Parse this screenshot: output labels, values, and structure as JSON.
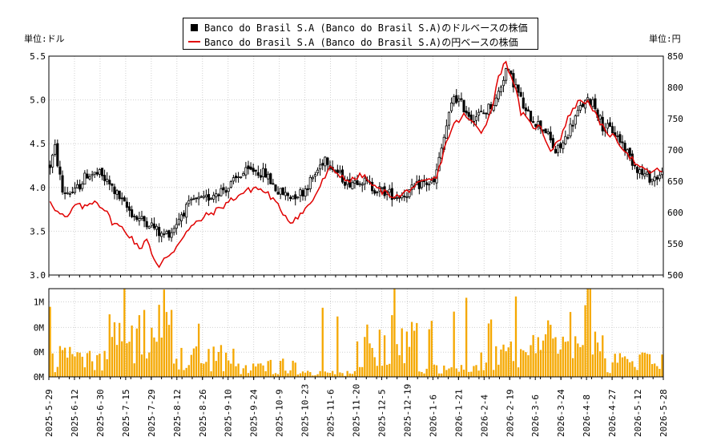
{
  "chart_data": {
    "type": "candlestick",
    "legend": {
      "usd_label": "Banco do Brasil S.A (Banco do Brasil S.A)のドルベースの株価",
      "jpy_label": "Banco do Brasil S.A (Banco do Brasil S.A)の円ベースの株価"
    },
    "left_unit": "単位:ドル",
    "right_unit": "単位:円",
    "y_left": {
      "min": 3.0,
      "max": 5.5,
      "ticks": [
        "3.0",
        "3.5",
        "4.0",
        "4.5",
        "5.0",
        "5.5"
      ]
    },
    "y_right": {
      "min": 500,
      "max": 850,
      "ticks": [
        "500",
        "550",
        "600",
        "650",
        "700",
        "750",
        "800",
        "850"
      ]
    },
    "volume_axis": {
      "ticks": [
        "0M",
        "0M",
        "0M",
        "1M"
      ]
    },
    "x_labels": [
      "2025-5-29",
      "2025-6-12",
      "2025-6-30",
      "2025-7-15",
      "2025-7-29",
      "2025-8-12",
      "2025-8-26",
      "2025-9-10",
      "2025-9-24",
      "2025-10-9",
      "2025-10-23",
      "2025-11-6",
      "2025-11-20",
      "2025-12-5",
      "2025-12-19",
      "2026-1-6",
      "2026-1-21",
      "2026-2-4",
      "2026-2-19",
      "2026-3-6",
      "2026-3-24",
      "2026-4-8",
      "2026-4-27",
      "2026-5-12",
      "2026-5-28"
    ],
    "usd_keypoints": [
      [
        0,
        4.25
      ],
      [
        2,
        4.45
      ],
      [
        5,
        3.95
      ],
      [
        10,
        3.95
      ],
      [
        15,
        4.15
      ],
      [
        20,
        4.15
      ],
      [
        25,
        4.0
      ],
      [
        30,
        3.8
      ],
      [
        35,
        3.65
      ],
      [
        40,
        3.6
      ],
      [
        45,
        3.45
      ],
      [
        49,
        3.5
      ],
      [
        53,
        3.7
      ],
      [
        58,
        3.85
      ],
      [
        62,
        3.85
      ],
      [
        67,
        3.95
      ],
      [
        72,
        4.0
      ],
      [
        77,
        4.15
      ],
      [
        82,
        4.2
      ],
      [
        87,
        4.15
      ],
      [
        92,
        3.95
      ],
      [
        97,
        3.9
      ],
      [
        102,
        3.95
      ],
      [
        107,
        4.15
      ],
      [
        111,
        4.35
      ],
      [
        115,
        4.2
      ],
      [
        120,
        4.05
      ],
      [
        125,
        4.1
      ],
      [
        130,
        4.0
      ],
      [
        135,
        3.95
      ],
      [
        140,
        3.9
      ],
      [
        145,
        3.95
      ],
      [
        150,
        4.05
      ],
      [
        155,
        4.05
      ],
      [
        160,
        4.7
      ],
      [
        163,
        5.05
      ],
      [
        166,
        4.95
      ],
      [
        170,
        4.8
      ],
      [
        175,
        4.85
      ],
      [
        180,
        5.0
      ],
      [
        184,
        5.35
      ],
      [
        188,
        5.15
      ],
      [
        192,
        4.85
      ],
      [
        196,
        4.75
      ],
      [
        200,
        4.65
      ],
      [
        204,
        4.4
      ],
      [
        207,
        4.5
      ],
      [
        211,
        4.75
      ],
      [
        215,
        4.95
      ],
      [
        219,
        5.0
      ],
      [
        223,
        4.7
      ],
      [
        227,
        4.65
      ],
      [
        231,
        4.5
      ],
      [
        235,
        4.3
      ],
      [
        239,
        4.15
      ],
      [
        243,
        4.1
      ],
      [
        247,
        4.15
      ]
    ],
    "jpy_keypoints": [
      [
        0,
        620
      ],
      [
        3,
        600
      ],
      [
        7,
        590
      ],
      [
        10,
        612
      ],
      [
        14,
        608
      ],
      [
        18,
        620
      ],
      [
        22,
        605
      ],
      [
        25,
        585
      ],
      [
        29,
        575
      ],
      [
        33,
        560
      ],
      [
        36,
        540
      ],
      [
        39,
        560
      ],
      [
        42,
        525
      ],
      [
        44,
        510
      ],
      [
        46,
        525
      ],
      [
        50,
        540
      ],
      [
        54,
        565
      ],
      [
        58,
        580
      ],
      [
        63,
        595
      ],
      [
        68,
        605
      ],
      [
        73,
        620
      ],
      [
        78,
        632
      ],
      [
        83,
        640
      ],
      [
        88,
        630
      ],
      [
        92,
        610
      ],
      [
        97,
        585
      ],
      [
        102,
        600
      ],
      [
        106,
        620
      ],
      [
        110,
        650
      ],
      [
        113,
        670
      ],
      [
        117,
        660
      ],
      [
        121,
        650
      ],
      [
        126,
        660
      ],
      [
        131,
        640
      ],
      [
        136,
        630
      ],
      [
        141,
        625
      ],
      [
        146,
        640
      ],
      [
        151,
        648
      ],
      [
        156,
        655
      ],
      [
        160,
        715
      ],
      [
        163,
        740
      ],
      [
        167,
        755
      ],
      [
        170,
        745
      ],
      [
        174,
        730
      ],
      [
        178,
        760
      ],
      [
        181,
        820
      ],
      [
        184,
        840
      ],
      [
        187,
        810
      ],
      [
        190,
        760
      ],
      [
        194,
        740
      ],
      [
        198,
        735
      ],
      [
        202,
        700
      ],
      [
        206,
        720
      ],
      [
        210,
        760
      ],
      [
        214,
        780
      ],
      [
        218,
        775
      ],
      [
        222,
        740
      ],
      [
        226,
        725
      ],
      [
        230,
        710
      ],
      [
        234,
        690
      ],
      [
        238,
        670
      ],
      [
        242,
        665
      ],
      [
        247,
        668
      ]
    ],
    "volume_levels": [
      0.25,
      0.55,
      0.3,
      0.15,
      0.05,
      0.45,
      0.1,
      0.35,
      0.6,
      0.2
    ],
    "colors": {
      "candle": "#000000",
      "jpy_line": "#e00000",
      "volume": "#f5a800",
      "grid": "#d0d0d0"
    }
  }
}
